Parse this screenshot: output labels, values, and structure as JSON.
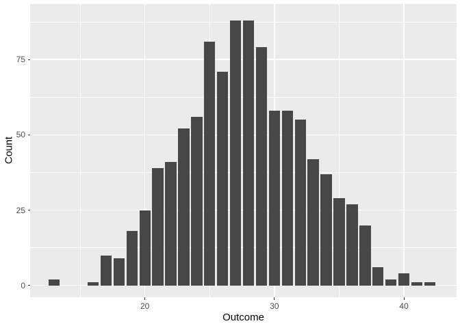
{
  "chart_data": {
    "type": "bar",
    "subtype": "histogram",
    "title": "",
    "xlabel": "Outcome",
    "ylabel": "Count",
    "binwidth": 1,
    "total_count": 1000,
    "bins": {
      "x": [
        13,
        14,
        15,
        16,
        17,
        18,
        19,
        20,
        21,
        22,
        23,
        24,
        25,
        26,
        27,
        28,
        29,
        30,
        31,
        32,
        33,
        34,
        35,
        36,
        37,
        38,
        39,
        40,
        41,
        42
      ],
      "counts": [
        2,
        0,
        0,
        1,
        10,
        9,
        18,
        25,
        39,
        41,
        52,
        56,
        81,
        71,
        88,
        88,
        79,
        58,
        58,
        55,
        42,
        37,
        29,
        27,
        20,
        6,
        2,
        4,
        1,
        1
      ]
    },
    "x_axis": {
      "ticks": [
        20,
        30,
        40
      ],
      "minor": [
        15,
        25,
        35
      ],
      "range": [
        11.1,
        44.0
      ]
    },
    "y_axis": {
      "ticks": [
        0,
        25,
        50,
        75
      ],
      "minor": [
        12.5,
        37.5,
        62.5,
        87.5
      ],
      "range": [
        -4.4,
        93.4
      ]
    },
    "legend": "none",
    "grid": "on"
  },
  "style": {
    "figure_bg": "#FFFFFF",
    "panel_bg": "#EBEBEB",
    "grid_color": "#FFFFFF",
    "bar_color": "#474747",
    "tick_label_color": "#4D4D4D",
    "axis_title_color": "#000000",
    "tick_mark_color": "#333333"
  }
}
